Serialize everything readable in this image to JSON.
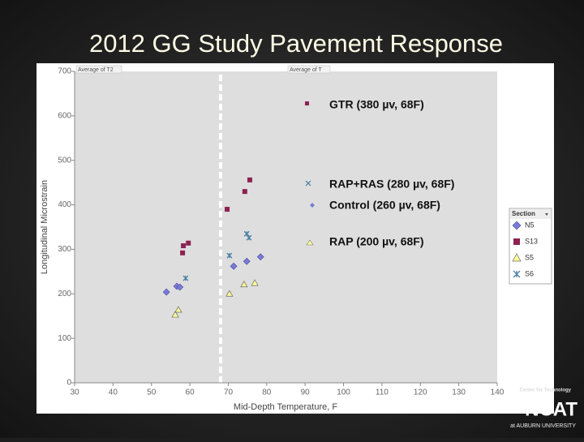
{
  "chart_data": {
    "type": "scatter",
    "title": "2012 GG Study Pavement Response",
    "x_label": "Mid-Depth Temperature, F",
    "y_label": "Longitudinal Microstrain",
    "xlim": [
      30,
      140
    ],
    "xticks": [
      30,
      40,
      50,
      60,
      70,
      80,
      90,
      100,
      110,
      120,
      130,
      140
    ],
    "ylim": [
      0,
      700
    ],
    "yticks": [
      0,
      100,
      200,
      300,
      400,
      500,
      600,
      700
    ],
    "grid": false,
    "field_labels": [
      "Average of T2",
      "Average of T"
    ],
    "legend_title": "Section",
    "series": [
      {
        "name": "N5",
        "color": "#7a7ad8",
        "marker": "diamond",
        "x": [
          53.9,
          56.6,
          57.4,
          71.4,
          74.8,
          78.4
        ],
        "values": [
          204,
          217,
          215,
          262,
          273,
          283
        ]
      },
      {
        "name": "S13",
        "color": "#8b2252",
        "marker": "square",
        "x": [
          58.1,
          58.3,
          59.6,
          69.7,
          74.3,
          75.6
        ],
        "values": [
          292,
          308,
          314,
          390,
          430,
          456
        ]
      },
      {
        "name": "S5",
        "color": "#ffff99",
        "marker": "triangle",
        "x": [
          56.2,
          57.0,
          70.3,
          74.1,
          76.9
        ],
        "values": [
          153,
          164,
          200,
          221,
          224
        ]
      },
      {
        "name": "S6",
        "color": "#4a7fa5",
        "marker": "x",
        "x": [
          58.9,
          70.3,
          74.8,
          75.4
        ],
        "values": [
          235,
          286,
          335,
          326
        ]
      }
    ],
    "annotations": [
      "GTR (380 µv, 68F)",
      "RAP+RAS (280 µv, 68F)",
      "Control (260 µv, 68F)",
      "RAP (200 µv, 68F)"
    ],
    "footer": {
      "center": "Center for Technology",
      "brand": "NCAT",
      "university": "at AUBURN UNIVERSITY"
    }
  }
}
